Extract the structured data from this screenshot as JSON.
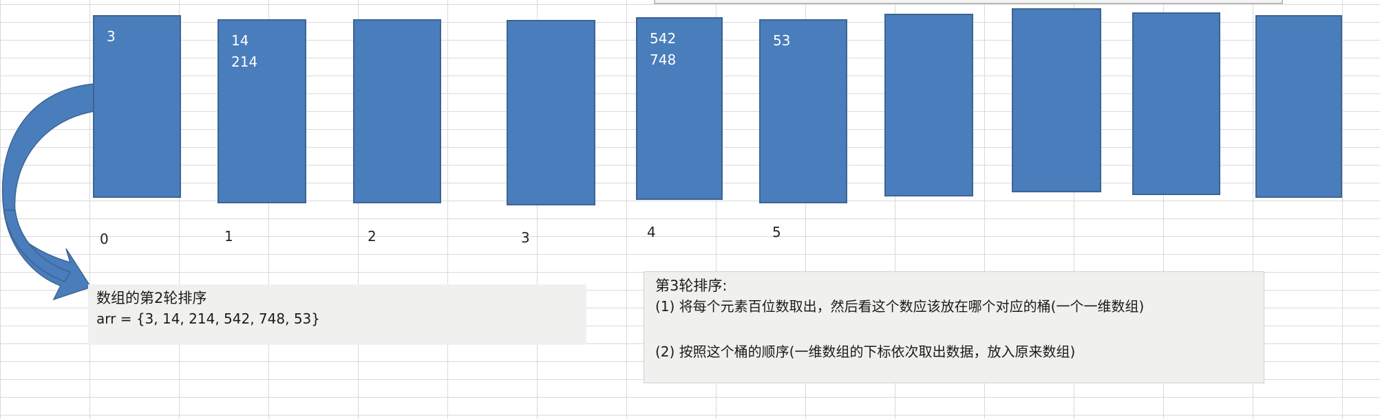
{
  "buckets": [
    {
      "index": "0",
      "values": [
        "3"
      ]
    },
    {
      "index": "1",
      "values": [
        "14",
        "214"
      ]
    },
    {
      "index": "2",
      "values": []
    },
    {
      "index": "3",
      "values": []
    },
    {
      "index": "4",
      "values": [
        "542",
        "748"
      ]
    },
    {
      "index": "5",
      "values": [
        "53"
      ]
    },
    {
      "index": "",
      "values": []
    },
    {
      "index": "",
      "values": []
    },
    {
      "index": "",
      "values": []
    },
    {
      "index": "",
      "values": []
    }
  ],
  "note_round2": {
    "title": "数组的第2轮排序",
    "array": "arr = {3, 14, 214, 542, 748, 53}"
  },
  "note_round3": {
    "title": "第3轮排序:",
    "step1": "(1) 将每个元素百位数取出，然后看这个数应该放在哪个对应的桶(一个一维数组)",
    "step2": "(2) 按照这个桶的顺序(一维数组的下标依次取出数据，放入原来数组)"
  },
  "colors": {
    "bucket_fill": "#4a7dbb",
    "bucket_border": "#3b6494",
    "note_background": "#f0f0ee"
  }
}
